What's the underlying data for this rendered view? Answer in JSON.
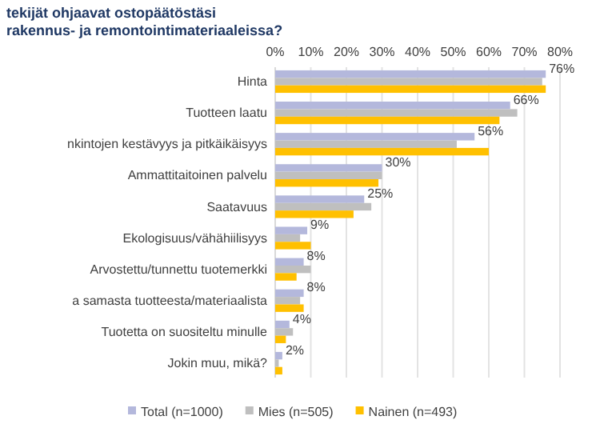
{
  "chart_data": {
    "type": "bar",
    "orientation": "horizontal",
    "title": "tekijät ohjaavat ostopäätöstäsi rakennus- ja remontointimateriaaleissa?",
    "categories": [
      "Hinta",
      "Tuotteen laatu",
      "nkintojen kestävyys ja pitkäikäisyys",
      "Ammattitaitoinen palvelu",
      "Saatavuus",
      "Ekologisuus/vähähiilisyys",
      "Arvostettu/tunnettu tuotemerkki",
      "a samasta tuotteesta/materiaalista",
      "Tuotetta on suositeltu minulle",
      "Jokin muu, mikä?"
    ],
    "series": [
      {
        "name": "Total (n=1000)",
        "color": "#b4b8dc",
        "values": [
          76,
          66,
          56,
          30,
          25,
          9,
          8,
          8,
          4,
          2
        ],
        "value_labels": [
          "76%",
          "66%",
          "56%",
          "30%",
          "25%",
          "9%",
          "8%",
          "8%",
          "4%",
          "2%"
        ]
      },
      {
        "name": "Mies (n=505)",
        "color": "#bfbfbf",
        "values": [
          75,
          68,
          51,
          30,
          27,
          7,
          10,
          7,
          5,
          1
        ]
      },
      {
        "name": "Nainen (n=493)",
        "color": "#ffc000",
        "values": [
          76,
          63,
          60,
          29,
          22,
          10,
          6,
          8,
          3,
          2
        ]
      }
    ],
    "xlim": [
      0,
      80
    ],
    "xticks": [
      {
        "value": 0,
        "label": "0%"
      },
      {
        "value": 10,
        "label": "10%"
      },
      {
        "value": 20,
        "label": "20%"
      },
      {
        "value": 30,
        "label": "30%"
      },
      {
        "value": 40,
        "label": "40%"
      },
      {
        "value": 50,
        "label": "50%"
      },
      {
        "value": 60,
        "label": "60%"
      },
      {
        "value": 70,
        "label": "70%"
      },
      {
        "value": 80,
        "label": "80%"
      }
    ],
    "grid": "x",
    "legend": "bottom"
  }
}
